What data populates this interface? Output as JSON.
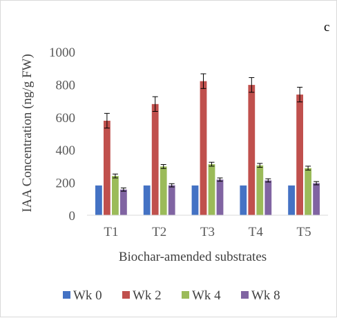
{
  "panel_label": "c",
  "chart_data": {
    "type": "bar",
    "title": "",
    "xlabel": "Biochar-amended substrates",
    "ylabel": "IAA Concentration (ng/g FW)",
    "ylim": [
      0,
      1000
    ],
    "yticks": [
      0,
      200,
      400,
      600,
      800,
      1000
    ],
    "grid": false,
    "legend_position": "bottom",
    "error_bars": true,
    "categories": [
      "T1",
      "T2",
      "T3",
      "T4",
      "T5"
    ],
    "series": [
      {
        "name": "Wk 0",
        "color": "#4472c4",
        "values": [
          182,
          182,
          182,
          182,
          182
        ],
        "errors": [
          0,
          0,
          0,
          0,
          0
        ]
      },
      {
        "name": "Wk 2",
        "color": "#c0504d",
        "values": [
          578,
          680,
          820,
          797,
          738
        ],
        "errors": [
          45,
          45,
          45,
          45,
          45
        ]
      },
      {
        "name": "Wk 4",
        "color": "#9bbb59",
        "values": [
          240,
          298,
          312,
          305,
          288
        ],
        "errors": [
          12,
          12,
          12,
          12,
          12
        ]
      },
      {
        "name": "Wk 8",
        "color": "#8064a2",
        "values": [
          157,
          183,
          218,
          213,
          196
        ],
        "errors": [
          10,
          10,
          10,
          10,
          10
        ]
      }
    ]
  }
}
